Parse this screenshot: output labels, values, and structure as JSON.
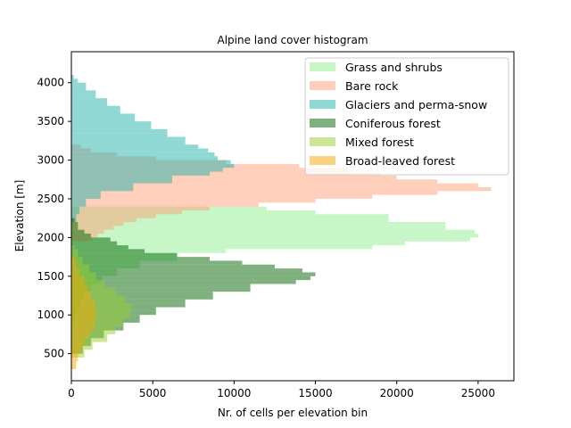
{
  "chart_data": {
    "type": "bar",
    "orientation": "horizontal-histogram",
    "title": "Alpine land cover histogram",
    "xlabel": "Nr. of cells per elevation bin",
    "ylabel": "Elevation [m]",
    "xlim": [
      0,
      27200
    ],
    "ylim": [
      150,
      4400
    ],
    "xticks": [
      "0",
      "5000",
      "10000",
      "15000",
      "20000",
      "25000"
    ],
    "yticks": [
      "500",
      "1000",
      "1500",
      "2000",
      "2500",
      "3000",
      "3500",
      "4000"
    ],
    "bin_width": 50,
    "legend": {
      "placement": "top-right"
    },
    "series": [
      {
        "name": "Grass and shrubs",
        "color": "#90ee90",
        "opacity": 0.5,
        "bins": [
          [
            900,
            200
          ],
          [
            1000,
            300
          ],
          [
            1100,
            500
          ],
          [
            1200,
            800
          ],
          [
            1300,
            1200
          ],
          [
            1400,
            1900
          ],
          [
            1500,
            2800
          ],
          [
            1600,
            4200
          ],
          [
            1700,
            6500
          ],
          [
            1800,
            9500
          ],
          [
            1850,
            18500
          ],
          [
            1900,
            20500
          ],
          [
            1950,
            24500
          ],
          [
            2000,
            25000
          ],
          [
            2050,
            24800
          ],
          [
            2100,
            23000
          ],
          [
            2200,
            19500
          ],
          [
            2300,
            15000
          ],
          [
            2350,
            12000
          ]
        ]
      },
      {
        "name": "Bare rock",
        "color": "#ffa07a",
        "opacity": 0.5,
        "bins": [
          [
            1950,
            1300
          ],
          [
            2000,
            1600
          ],
          [
            2050,
            2000
          ],
          [
            2100,
            2600
          ],
          [
            2150,
            3200
          ],
          [
            2200,
            4000
          ],
          [
            2250,
            5200
          ],
          [
            2300,
            6800
          ],
          [
            2350,
            8500
          ],
          [
            2400,
            11500
          ],
          [
            2450,
            15000
          ],
          [
            2500,
            18500
          ],
          [
            2550,
            22500
          ],
          [
            2600,
            25800
          ],
          [
            2650,
            25000
          ],
          [
            2700,
            22500
          ],
          [
            2750,
            20000
          ],
          [
            2800,
            19000
          ],
          [
            2850,
            17000
          ],
          [
            2900,
            14000
          ],
          [
            2950,
            9500
          ],
          [
            3000,
            5200
          ],
          [
            3050,
            2800
          ],
          [
            3100,
            1200
          ],
          [
            3150,
            600
          ]
        ]
      },
      {
        "name": "Glaciers and perma-snow",
        "color": "#20b2aa",
        "opacity": 0.5,
        "bins": [
          [
            2200,
            300
          ],
          [
            2300,
            500
          ],
          [
            2400,
            900
          ],
          [
            2500,
            1800
          ],
          [
            2600,
            3800
          ],
          [
            2700,
            6200
          ],
          [
            2800,
            8500
          ],
          [
            2850,
            9300
          ],
          [
            2900,
            10000
          ],
          [
            2950,
            9800
          ],
          [
            3000,
            9000
          ],
          [
            3050,
            8800
          ],
          [
            3100,
            8400
          ],
          [
            3150,
            7800
          ],
          [
            3200,
            7000
          ],
          [
            3300,
            5900
          ],
          [
            3400,
            4900
          ],
          [
            3500,
            3900
          ],
          [
            3600,
            3000
          ],
          [
            3700,
            2200
          ],
          [
            3800,
            1500
          ],
          [
            3900,
            900
          ],
          [
            4000,
            400
          ],
          [
            4050,
            150
          ]
        ]
      },
      {
        "name": "Coniferous forest",
        "color": "#006400",
        "opacity": 0.5,
        "bins": [
          [
            500,
            700
          ],
          [
            600,
            1200
          ],
          [
            700,
            2000
          ],
          [
            800,
            3200
          ],
          [
            900,
            4200
          ],
          [
            1000,
            5200
          ],
          [
            1100,
            7000
          ],
          [
            1200,
            8700
          ],
          [
            1300,
            11000
          ],
          [
            1400,
            13800
          ],
          [
            1450,
            14700
          ],
          [
            1500,
            15000
          ],
          [
            1550,
            14200
          ],
          [
            1600,
            12500
          ],
          [
            1650,
            10500
          ],
          [
            1700,
            8500
          ],
          [
            1750,
            6500
          ],
          [
            1800,
            4500
          ],
          [
            1850,
            3500
          ],
          [
            1900,
            2800
          ],
          [
            1950,
            2400
          ],
          [
            2000,
            1200
          ],
          [
            2050,
            800
          ],
          [
            2100,
            400
          ],
          [
            2200,
            200
          ]
        ]
      },
      {
        "name": "Mixed forest",
        "color": "#9acd32",
        "opacity": 0.5,
        "bins": [
          [
            450,
            800
          ],
          [
            550,
            1300
          ],
          [
            650,
            2200
          ],
          [
            750,
            2700
          ],
          [
            850,
            3200
          ],
          [
            950,
            3600
          ],
          [
            1050,
            3700
          ],
          [
            1150,
            3300
          ],
          [
            1250,
            2700
          ],
          [
            1350,
            2000
          ],
          [
            1450,
            1500
          ],
          [
            1550,
            1100
          ],
          [
            1650,
            700
          ],
          [
            1750,
            400
          ],
          [
            1850,
            200
          ]
        ]
      },
      {
        "name": "Broad-leaved forest",
        "color": "#f5a800",
        "opacity": 0.5,
        "bins": [
          [
            300,
            300
          ],
          [
            400,
            400
          ],
          [
            500,
            600
          ],
          [
            600,
            800
          ],
          [
            700,
            1100
          ],
          [
            800,
            1400
          ],
          [
            900,
            1500
          ],
          [
            1000,
            1500
          ],
          [
            1100,
            1400
          ],
          [
            1200,
            1200
          ],
          [
            1300,
            1000
          ],
          [
            1400,
            800
          ],
          [
            1500,
            500
          ],
          [
            1600,
            300
          ],
          [
            1700,
            200
          ]
        ]
      }
    ]
  }
}
